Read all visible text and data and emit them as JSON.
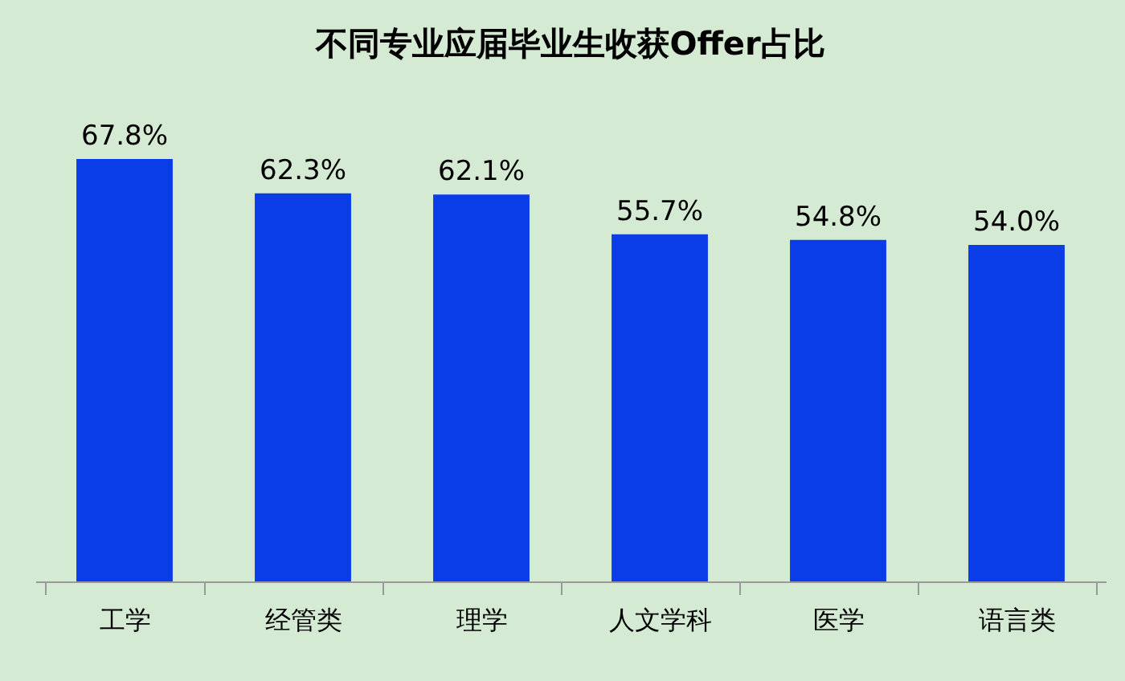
{
  "chart_data": {
    "type": "bar",
    "title": "不同专业应届毕业生收获Offer占比",
    "categories": [
      "工学",
      "经管类",
      "理学",
      "人文学科",
      "医学",
      "语言类"
    ],
    "values": [
      67.8,
      62.3,
      62.1,
      55.7,
      54.8,
      54.0
    ],
    "value_labels": [
      "67.8%",
      "62.3%",
      "62.1%",
      "55.7%",
      "54.8%",
      "54.0%"
    ],
    "color": "#0a3ce8",
    "grid": false
  }
}
